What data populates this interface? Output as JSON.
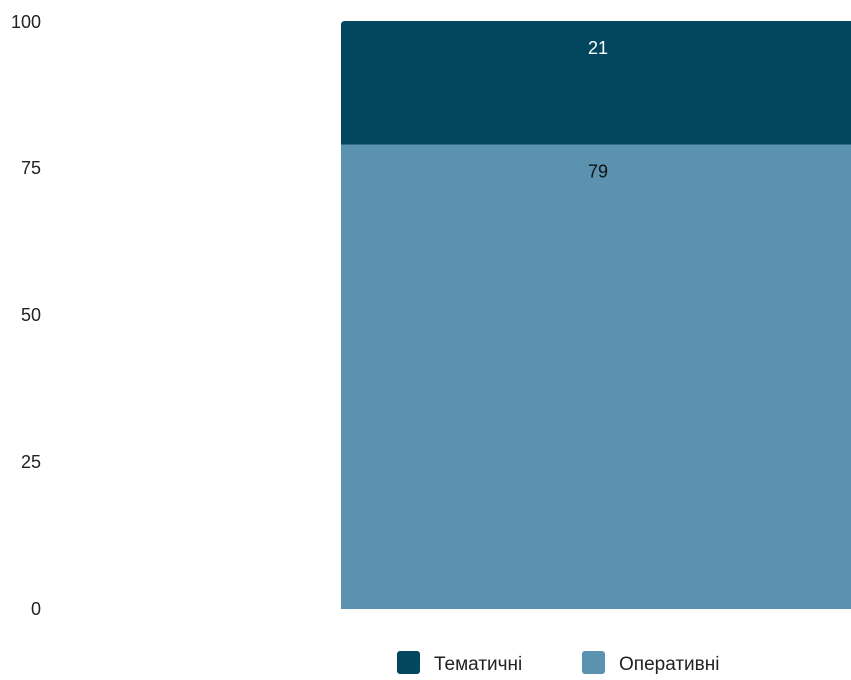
{
  "chart_data": {
    "type": "bar",
    "stacked": true,
    "categories": [
      ""
    ],
    "series": [
      {
        "name": "Оперативні",
        "values": [
          79
        ],
        "color": "#5b92b0",
        "label_color": "#111111"
      },
      {
        "name": "Тематичні",
        "values": [
          21
        ],
        "color": "#03475f",
        "label_color": "#ffffff"
      }
    ],
    "yticks": [
      "0",
      "25",
      "50",
      "75",
      "100"
    ],
    "ylim": [
      0,
      100
    ],
    "title": "",
    "xlabel": "",
    "ylabel": "",
    "grid": false,
    "legend": {
      "placement": "bottom",
      "order": [
        "Тематичні",
        "Оперативні"
      ]
    }
  }
}
